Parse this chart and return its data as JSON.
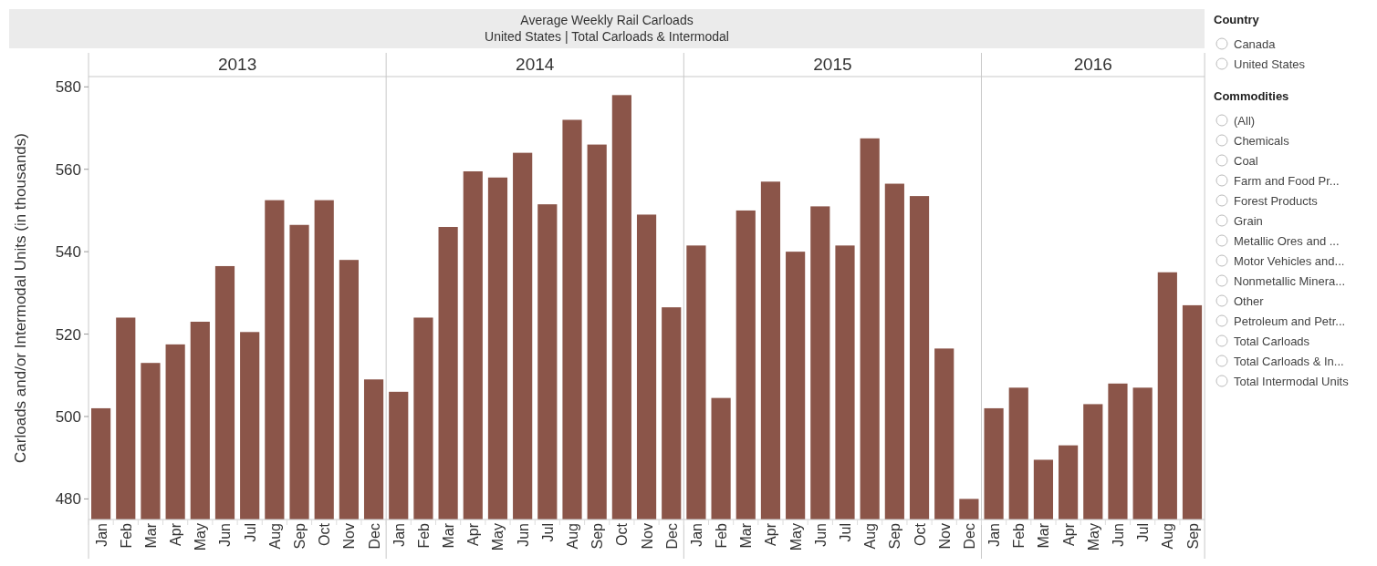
{
  "chart_data": [
    {
      "type": "other",
      "title": "Average Weekly Rail Carloads",
      "subtitle": "United States | Total Carloads & Intermodal"
    },
    {
      "type": "bar",
      "title": "2013",
      "ylabel": "Carloads and/or Intermodal Units (in thousands)",
      "categories": [
        "Jan",
        "Feb",
        "Mar",
        "Apr",
        "May",
        "Jun",
        "Jul",
        "Aug",
        "Sep",
        "Oct",
        "Nov",
        "Dec"
      ],
      "values": [
        502,
        524,
        513,
        517.5,
        523,
        536.5,
        520.5,
        552.5,
        546.5,
        552.5,
        538,
        509
      ],
      "color": "#8b5549",
      "ylim": [
        475,
        582.5
      ],
      "yticks": [
        480,
        500,
        520,
        540,
        560,
        580
      ]
    },
    {
      "type": "bar",
      "title": "2014",
      "categories": [
        "Jan",
        "Feb",
        "Mar",
        "Apr",
        "May",
        "Jun",
        "Jul",
        "Aug",
        "Sep",
        "Oct",
        "Nov",
        "Dec"
      ],
      "values": [
        506,
        524,
        546,
        559.5,
        558,
        564,
        551.5,
        572,
        566,
        578,
        549,
        526.5
      ],
      "color": "#8b5549",
      "ylim": [
        475,
        582.5
      ],
      "tick_labels": "x"
    },
    {
      "type": "bar",
      "title": "2015",
      "categories": [
        "Jan",
        "Feb",
        "Mar",
        "Apr",
        "May",
        "Jun",
        "Jul",
        "Aug",
        "Sep",
        "Oct",
        "Nov",
        "Dec"
      ],
      "values": [
        541.5,
        504.5,
        550,
        557,
        540,
        551,
        541.5,
        567.5,
        556.5,
        553.5,
        516.5,
        480
      ],
      "color": "#8b5549",
      "ylim": [
        475,
        582.5
      ],
      "tick_labels": "x"
    },
    {
      "type": "bar",
      "title": "2016",
      "categories": [
        "Jan",
        "Feb",
        "Mar",
        "Apr",
        "May",
        "Jun",
        "Jul",
        "Aug",
        "Sep"
      ],
      "values": [
        502,
        507,
        489.5,
        493,
        503,
        508,
        507,
        535,
        527
      ],
      "color": "#8b5549",
      "ylim": [
        475,
        582.5
      ],
      "tick_labels": "x"
    },
    {
      "type": "other",
      "title": "Country",
      "annotations": [
        "Canada",
        "United States"
      ]
    },
    {
      "type": "other",
      "title": "Commodities",
      "annotations": [
        "(All)",
        "Chemicals",
        "Coal",
        "Farm and Food Pr...",
        "Forest Products",
        "Grain",
        "Metallic Ores and ...",
        "Motor Vehicles and...",
        "Nonmetallic Minera...",
        "Other",
        "Petroleum and Petr...",
        "Total Carloads",
        "Total Carloads & In...",
        "Total Intermodal Units"
      ]
    }
  ]
}
